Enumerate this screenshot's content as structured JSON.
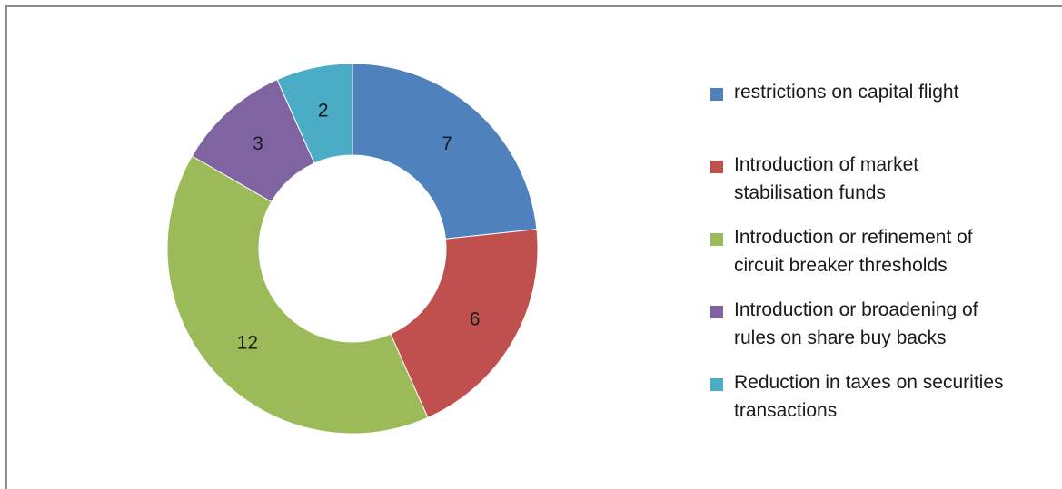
{
  "chart_data": {
    "type": "pie",
    "variant": "donut",
    "start_angle_deg": 0,
    "direction": "clockwise",
    "legend_position": "right",
    "series": [
      {
        "name": "restrictions on capital flight",
        "value": 7,
        "color": "#4F81BD"
      },
      {
        "name": "Introduction of market stabilisation funds",
        "value": 6,
        "color": "#C0504D"
      },
      {
        "name": "Introduction or refinement of circuit breaker thresholds",
        "value": 12,
        "color": "#9BBB59"
      },
      {
        "name": "Introduction or broadening of rules on share buy backs",
        "value": 3,
        "color": "#8064A2"
      },
      {
        "name": "Reduction in taxes on securities transactions",
        "value": 2,
        "color": "#4BACC6"
      }
    ],
    "legend_lines": [
      [
        "restrictions on capital flight"
      ],
      [
        "Introduction of market",
        "stabilisation funds"
      ],
      [
        "Introduction or refinement of",
        "circuit breaker thresholds"
      ],
      [
        "Introduction or broadening of",
        "rules on share buy backs"
      ],
      [
        "Reduction in taxes on securities",
        "transactions"
      ]
    ]
  }
}
